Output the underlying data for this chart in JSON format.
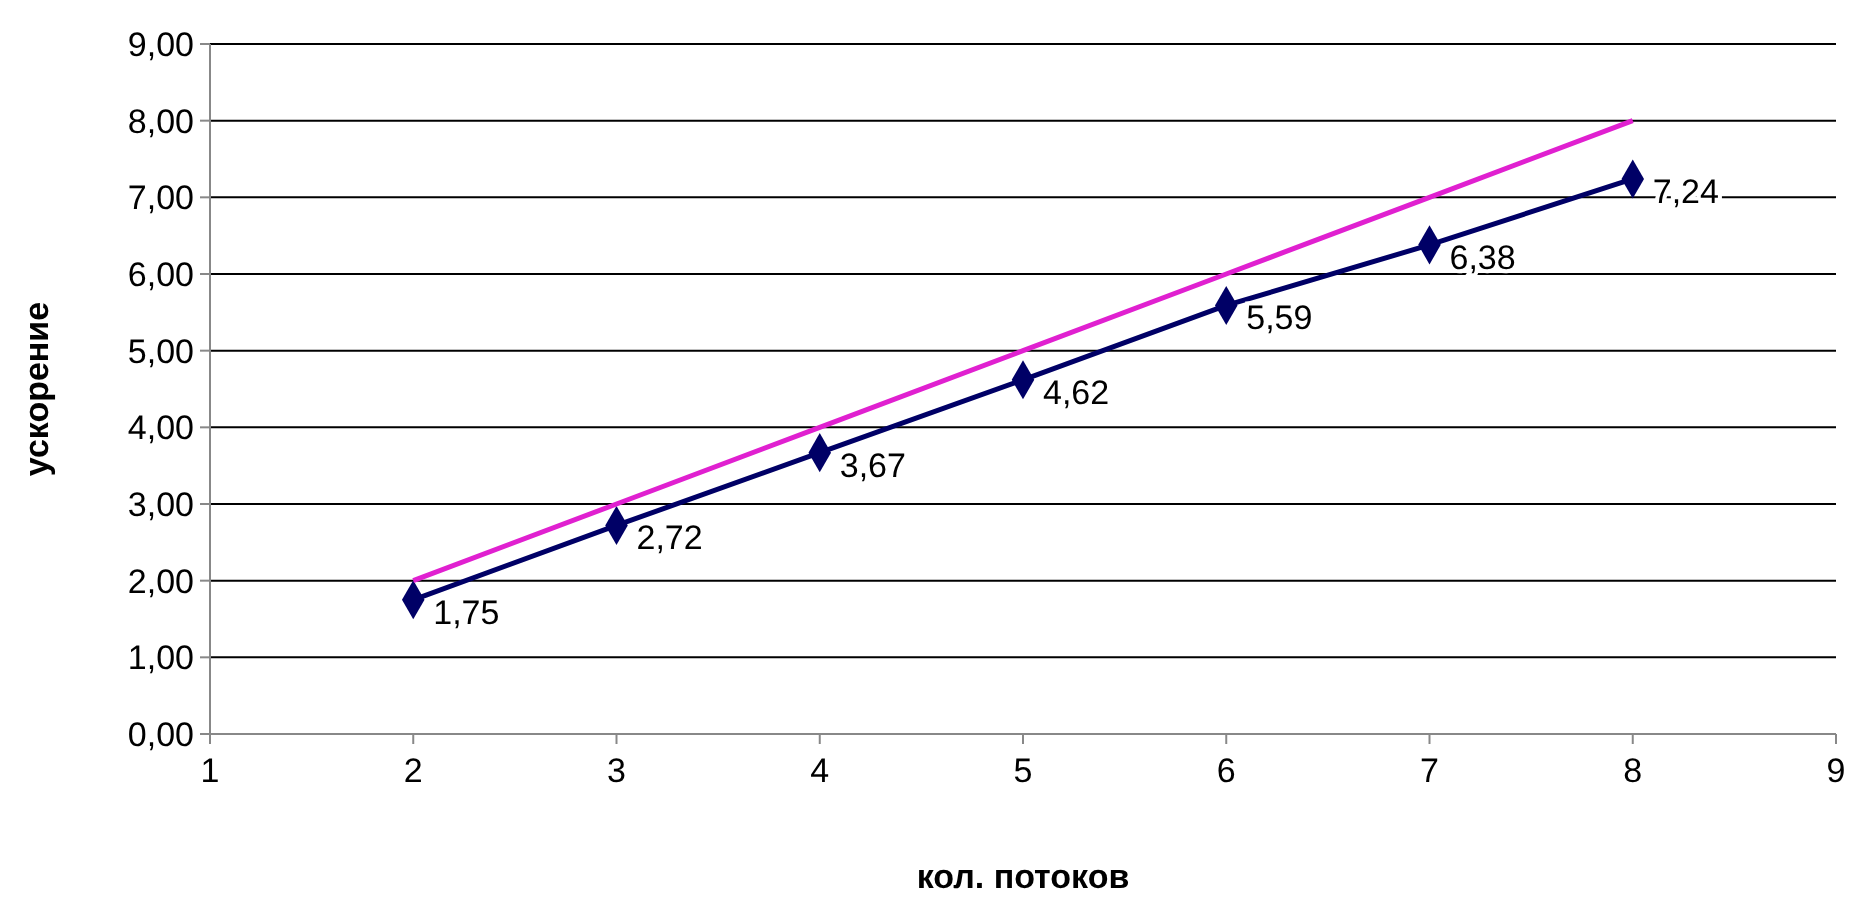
{
  "chart_data": {
    "type": "line",
    "xlabel": "кол. потоков",
    "ylabel": "ускорение",
    "xlim": [
      1,
      9
    ],
    "xticks": [
      1,
      2,
      3,
      4,
      5,
      6,
      7,
      8,
      9
    ],
    "ylim": [
      0,
      9
    ],
    "yticks": [
      {
        "value": 0,
        "label": "0,00"
      },
      {
        "value": 1,
        "label": "1,00"
      },
      {
        "value": 2,
        "label": "2,00"
      },
      {
        "value": 3,
        "label": "3,00"
      },
      {
        "value": 4,
        "label": "4,00"
      },
      {
        "value": 5,
        "label": "5,00"
      },
      {
        "value": 6,
        "label": "6,00"
      },
      {
        "value": 7,
        "label": "7,00"
      },
      {
        "value": 8,
        "label": "8,00"
      },
      {
        "value": 9,
        "label": "9,00"
      }
    ],
    "grid": "y",
    "series": [
      {
        "color": "#000066",
        "x": [
          2,
          3,
          4,
          5,
          6,
          7,
          8
        ],
        "values": [
          1.75,
          2.72,
          3.67,
          4.62,
          5.59,
          6.38,
          7.24
        ],
        "marker": "diamond",
        "value_labels": [
          "1,75",
          "2,72",
          "3,67",
          "4,62",
          "5,59",
          "6,38",
          "7,24"
        ]
      },
      {
        "color": "#e020d0",
        "x": [
          2,
          3,
          4,
          5,
          6,
          7,
          8
        ],
        "values": [
          2,
          3,
          4,
          5,
          6,
          7,
          8
        ],
        "marker": "none"
      }
    ]
  }
}
